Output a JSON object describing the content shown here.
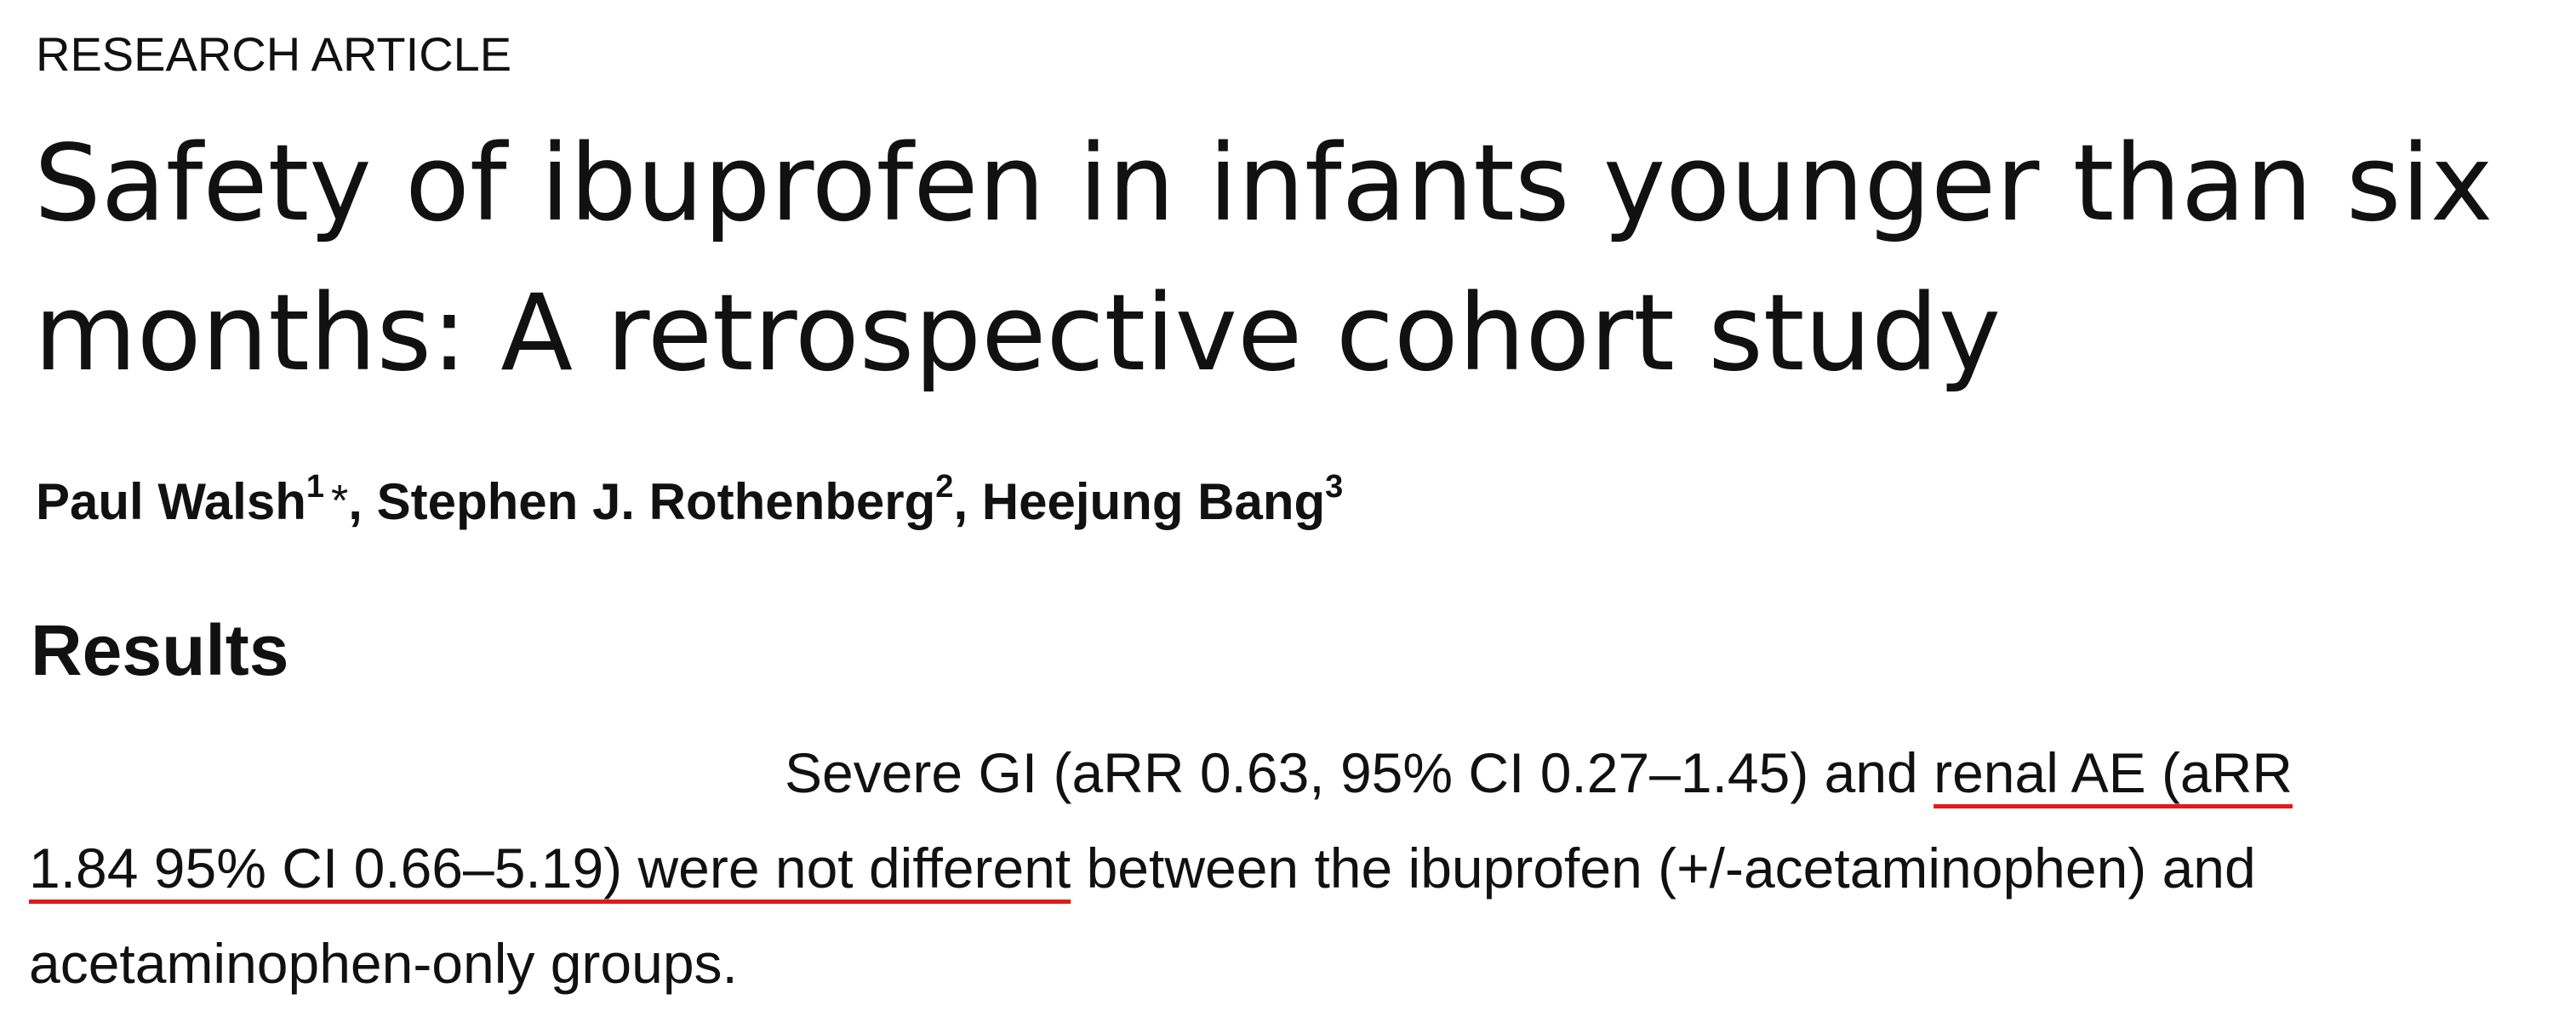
{
  "article": {
    "kicker": "RESEARCH ARTICLE",
    "title_lines": [
      "Safety of ibuprofen in infants younger than six",
      "months: A retrospective cohort study"
    ],
    "authors": [
      {
        "name": "Paul Walsh",
        "affiliation": "1",
        "corresponding_mark": "*"
      },
      {
        "name": "Stephen J. Rothenberg",
        "affiliation": "2"
      },
      {
        "name": "Heejung Bang",
        "affiliation": "3"
      }
    ],
    "author_separator": ", "
  },
  "results": {
    "heading": "Results",
    "line1_plain": "Severe GI (aRR 0.63, 95% CI 0.27–1.45) and ",
    "line1_highlight": "renal AE (aRR ",
    "line2_highlight": "1.84 95% CI 0.66–5.19) were not different",
    "line2_plain": " between the ibuprofen (+/-acetaminophen) and",
    "line3_plain": "acetaminophen-only groups.",
    "highlight_color": "#e01b1b"
  }
}
